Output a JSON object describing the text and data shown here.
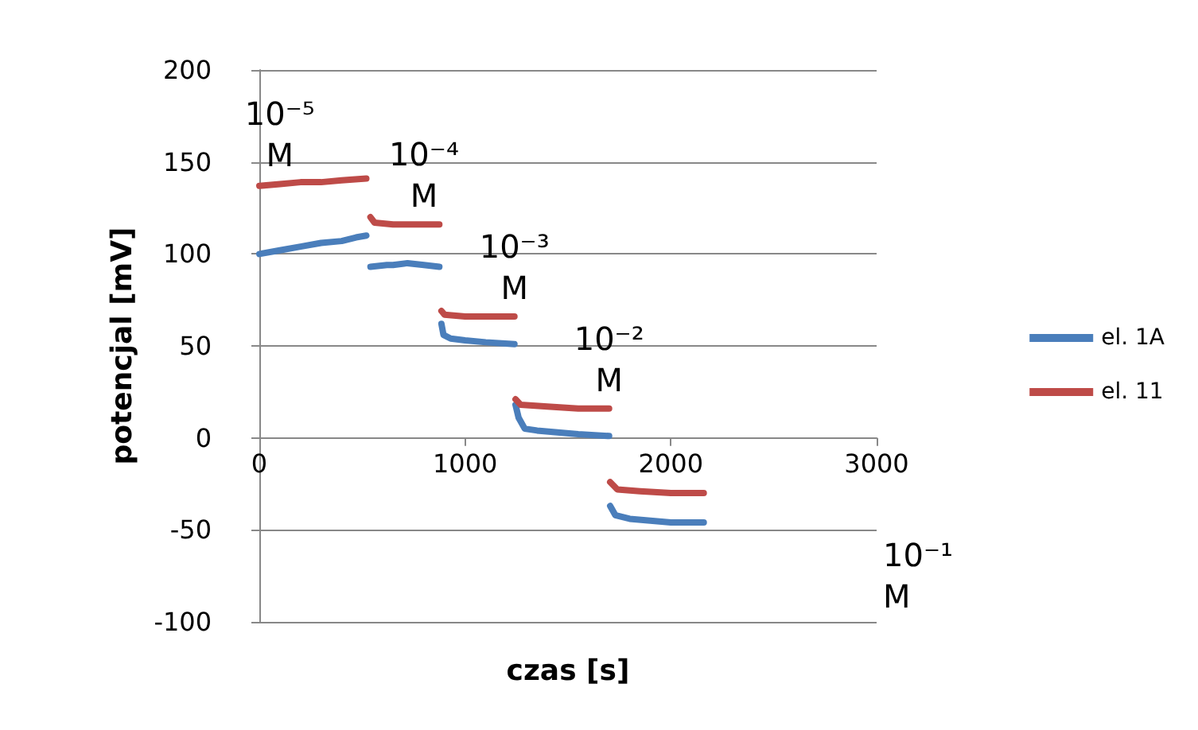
{
  "chart_data": {
    "type": "line",
    "xlabel": "czas [s]",
    "ylabel": "potencjal [mV]",
    "xlim": [
      0,
      3000
    ],
    "xticks": [
      0,
      1000,
      2000,
      3000
    ],
    "ylim": [
      -100,
      200
    ],
    "yticks": [
      -100,
      -50,
      0,
      50,
      100,
      150,
      200
    ],
    "grid": "y",
    "legend": "right",
    "series": [
      {
        "name": "el. 1A",
        "color": "#4a7ebb",
        "x": [
          0,
          100,
          200,
          300,
          400,
          470,
          520
        ],
        "values": [
          100,
          102,
          104,
          106,
          107,
          109,
          110
        ]
      },
      {
        "name": "el. 11",
        "color": "#be4b48",
        "x": [
          0,
          100,
          200,
          300,
          400,
          520
        ],
        "values": [
          137,
          138,
          139,
          139,
          140,
          141
        ]
      },
      {
        "color": "#4a7ebb",
        "x": [
          540,
          620,
          650,
          720,
          800,
          875
        ],
        "values": [
          93,
          94,
          94,
          95,
          94,
          93
        ]
      },
      {
        "color": "#be4b48",
        "x": [
          540,
          560,
          650,
          800,
          875
        ],
        "values": [
          120,
          117,
          116,
          116,
          116
        ]
      },
      {
        "color": "#4a7ebb",
        "x": [
          885,
          895,
          930,
          1000,
          1100,
          1240
        ],
        "values": [
          62,
          56,
          54,
          53,
          52,
          51
        ]
      },
      {
        "color": "#be4b48",
        "x": [
          885,
          900,
          1000,
          1240
        ],
        "values": [
          69,
          67,
          66,
          66
        ]
      },
      {
        "color": "#4a7ebb",
        "x": [
          1245,
          1260,
          1290,
          1350,
          1450,
          1550,
          1700
        ],
        "values": [
          18,
          11,
          5,
          4,
          3,
          2,
          1
        ]
      },
      {
        "color": "#be4b48",
        "x": [
          1245,
          1270,
          1400,
          1550,
          1700
        ],
        "values": [
          21,
          18,
          17,
          16,
          16
        ]
      },
      {
        "color": "#4a7ebb",
        "x": [
          1705,
          1730,
          1800,
          1900,
          2000,
          2160
        ],
        "values": [
          -37,
          -42,
          -44,
          -45,
          -46,
          -46
        ]
      },
      {
        "color": "#be4b48",
        "x": [
          1705,
          1740,
          1850,
          2000,
          2160
        ],
        "values": [
          -24,
          -28,
          -29,
          -30,
          -30
        ]
      }
    ],
    "annotations": [
      {
        "text": "10⁻⁵ M",
        "x": 100,
        "y": 138
      },
      {
        "text": "10⁻⁴ M",
        "x": 800,
        "y": 116
      },
      {
        "text": "10⁻³ M",
        "x": 1240,
        "y": 66
      },
      {
        "text": "10⁻² M",
        "x": 1700,
        "y": 16
      },
      "10⁻¹ M"
    ]
  }
}
